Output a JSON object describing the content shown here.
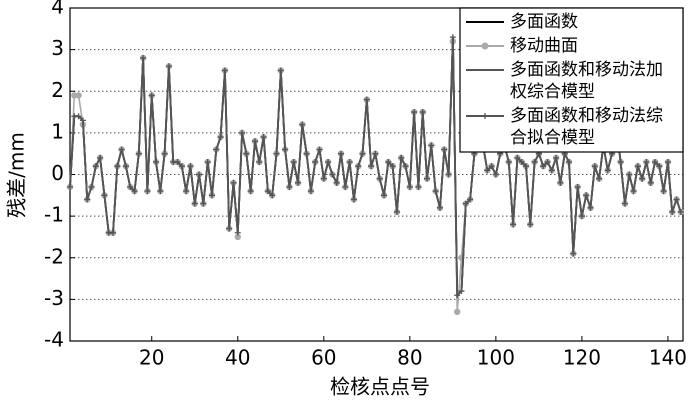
{
  "chart_data": {
    "type": "line",
    "xlabel": "检核点点号",
    "ylabel": "残差/mm",
    "x": [
      1,
      2,
      3,
      4,
      5,
      6,
      7,
      8,
      9,
      10,
      11,
      12,
      13,
      14,
      15,
      16,
      17,
      18,
      19,
      20,
      21,
      22,
      23,
      24,
      25,
      26,
      27,
      28,
      29,
      30,
      31,
      32,
      33,
      34,
      35,
      36,
      37,
      38,
      39,
      40,
      41,
      42,
      43,
      44,
      45,
      46,
      47,
      48,
      49,
      50,
      51,
      52,
      53,
      54,
      55,
      56,
      57,
      58,
      59,
      60,
      61,
      62,
      63,
      64,
      65,
      66,
      67,
      68,
      69,
      70,
      71,
      72,
      73,
      74,
      75,
      76,
      77,
      78,
      79,
      80,
      81,
      82,
      83,
      84,
      85,
      86,
      87,
      88,
      89,
      90,
      91,
      92,
      93,
      94,
      95,
      96,
      97,
      98,
      99,
      100,
      101,
      102,
      103,
      104,
      105,
      106,
      107,
      108,
      109,
      110,
      111,
      112,
      113,
      114,
      115,
      116,
      117,
      118,
      119,
      120,
      121,
      122,
      123,
      124,
      125,
      126,
      127,
      128,
      129,
      130,
      131,
      132,
      133,
      134,
      135,
      136,
      137,
      138,
      139,
      140,
      141,
      142,
      143
    ],
    "series": [
      {
        "name": "多面函数",
        "color": "#000000",
        "marker": "none",
        "values": [
          -0.3,
          1.4,
          1.4,
          1.3,
          -0.6,
          -0.3,
          0.2,
          0.4,
          -0.5,
          -1.4,
          -1.4,
          0.2,
          0.6,
          0.2,
          -0.3,
          -0.4,
          0.5,
          2.8,
          -0.4,
          1.9,
          0.3,
          -0.4,
          0.5,
          2.6,
          0.3,
          0.3,
          0.2,
          -0.4,
          0.2,
          -0.7,
          0.0,
          -0.7,
          0.3,
          -0.5,
          0.6,
          0.9,
          2.5,
          -1.3,
          -0.2,
          -1.4,
          1.0,
          0.5,
          -0.4,
          0.8,
          0.3,
          0.9,
          -0.4,
          -0.5,
          0.5,
          2.5,
          0.6,
          -0.3,
          0.3,
          -0.2,
          1.2,
          0.5,
          -0.4,
          0.3,
          0.6,
          -0.1,
          0.3,
          0.0,
          -0.2,
          0.5,
          -0.3,
          0.3,
          -0.6,
          0.2,
          0.5,
          1.8,
          0.2,
          0.5,
          -0.1,
          -0.5,
          0.3,
          0.2,
          -0.9,
          0.4,
          0.2,
          -0.3,
          1.5,
          -0.3,
          1.5,
          -0.1,
          0.7,
          -0.4,
          -0.8,
          0.6,
          0.0,
          3.3,
          -2.9,
          -2.8,
          -0.7,
          -0.6,
          0.5,
          2.0,
          0.7,
          0.1,
          0.2,
          0.0,
          0.5,
          0.7,
          0.3,
          -1.2,
          0.4,
          0.3,
          0.2,
          -1.2,
          0.3,
          0.5,
          0.2,
          0.3,
          0.1,
          0.4,
          -0.2,
          0.5,
          0.3,
          -1.9,
          -0.3,
          -1.0,
          -0.5,
          -0.8,
          0.2,
          -0.1,
          0.7,
          0.1,
          0.5,
          1.2,
          0.3,
          -0.7,
          0.0,
          -0.4,
          0.2,
          -0.1,
          0.3,
          -0.2,
          0.3,
          0.2,
          -0.4,
          0.3,
          -0.9,
          -0.6,
          -0.9
        ]
      },
      {
        "name": "移动曲面",
        "color": "#aaaaaa",
        "marker": "circle",
        "values": [
          -0.3,
          1.9,
          1.9,
          1.2,
          -0.6,
          -0.3,
          0.2,
          0.4,
          -0.5,
          -1.4,
          -1.4,
          0.2,
          0.6,
          0.2,
          -0.3,
          -0.4,
          0.5,
          2.8,
          -0.4,
          1.9,
          0.3,
          -0.4,
          0.5,
          2.6,
          0.3,
          0.3,
          0.2,
          -0.4,
          0.2,
          -0.7,
          0.0,
          -0.7,
          0.3,
          -0.5,
          0.6,
          0.9,
          2.5,
          -1.3,
          -0.2,
          -1.5,
          1.0,
          0.5,
          -0.4,
          0.8,
          0.3,
          0.9,
          -0.4,
          -0.5,
          0.5,
          2.5,
          0.6,
          -0.3,
          0.3,
          -0.2,
          1.2,
          0.5,
          -0.4,
          0.3,
          0.6,
          -0.1,
          0.3,
          0.0,
          -0.2,
          0.5,
          -0.3,
          0.3,
          -0.6,
          0.2,
          0.5,
          1.8,
          0.2,
          0.5,
          -0.1,
          -0.5,
          0.3,
          0.2,
          -0.9,
          0.4,
          0.2,
          -0.3,
          1.5,
          -0.3,
          1.5,
          -0.1,
          0.7,
          -0.4,
          -0.8,
          0.6,
          0.0,
          3.2,
          -3.3,
          -2.0,
          -0.7,
          -0.6,
          0.5,
          2.0,
          0.7,
          0.1,
          0.2,
          0.0,
          0.5,
          0.7,
          0.3,
          -1.2,
          0.4,
          0.3,
          0.2,
          -1.2,
          0.3,
          0.5,
          0.2,
          0.3,
          0.1,
          0.4,
          -0.2,
          0.5,
          0.3,
          -1.9,
          -0.3,
          -1.0,
          -0.5,
          -0.8,
          0.2,
          -0.1,
          0.7,
          0.1,
          0.5,
          1.2,
          0.3,
          -0.7,
          0.0,
          -0.4,
          0.2,
          -0.1,
          0.3,
          -0.2,
          0.3,
          0.2,
          -0.4,
          0.3,
          -0.9,
          -0.6,
          -0.9
        ]
      },
      {
        "name": "多面函数和移动法加权综合模型",
        "color": "#555555",
        "marker": "none",
        "values": [
          -0.3,
          1.4,
          1.4,
          1.3,
          -0.6,
          -0.3,
          0.2,
          0.4,
          -0.5,
          -1.4,
          -1.4,
          0.2,
          0.6,
          0.2,
          -0.3,
          -0.4,
          0.5,
          2.8,
          -0.4,
          1.9,
          0.3,
          -0.4,
          0.5,
          2.6,
          0.3,
          0.3,
          0.2,
          -0.4,
          0.2,
          -0.7,
          0.0,
          -0.7,
          0.3,
          -0.5,
          0.6,
          0.9,
          2.5,
          -1.3,
          -0.2,
          -1.4,
          1.0,
          0.5,
          -0.4,
          0.8,
          0.3,
          0.9,
          -0.4,
          -0.5,
          0.5,
          2.5,
          0.6,
          -0.3,
          0.3,
          -0.2,
          1.2,
          0.5,
          -0.4,
          0.3,
          0.6,
          -0.1,
          0.3,
          0.0,
          -0.2,
          0.5,
          -0.3,
          0.3,
          -0.6,
          0.2,
          0.5,
          1.8,
          0.2,
          0.5,
          -0.1,
          -0.5,
          0.3,
          0.2,
          -0.9,
          0.4,
          0.2,
          -0.3,
          1.5,
          -0.3,
          1.5,
          -0.1,
          0.7,
          -0.4,
          -0.8,
          0.6,
          0.0,
          3.3,
          -2.9,
          -2.8,
          -0.7,
          -0.6,
          0.5,
          2.0,
          0.7,
          0.1,
          0.2,
          0.0,
          0.5,
          0.7,
          0.3,
          -1.2,
          0.4,
          0.3,
          0.2,
          -1.2,
          0.3,
          0.5,
          0.2,
          0.3,
          0.1,
          0.4,
          -0.2,
          0.5,
          0.3,
          -1.9,
          -0.3,
          -1.0,
          -0.5,
          -0.8,
          0.2,
          -0.1,
          0.7,
          0.1,
          0.5,
          1.2,
          0.3,
          -0.7,
          0.0,
          -0.4,
          0.2,
          -0.1,
          0.3,
          -0.2,
          0.3,
          0.2,
          -0.4,
          0.3,
          -0.9,
          -0.6,
          -0.9
        ]
      },
      {
        "name": "多面函数和移动法综合拟合模型",
        "color": "#555555",
        "marker": "plus",
        "values": [
          -0.3,
          1.4,
          1.4,
          1.3,
          -0.6,
          -0.3,
          0.2,
          0.4,
          -0.5,
          -1.4,
          -1.4,
          0.2,
          0.6,
          0.2,
          -0.3,
          -0.4,
          0.5,
          2.8,
          -0.4,
          1.9,
          0.3,
          -0.4,
          0.5,
          2.6,
          0.3,
          0.3,
          0.2,
          -0.4,
          0.2,
          -0.7,
          0.0,
          -0.7,
          0.3,
          -0.5,
          0.6,
          0.9,
          2.5,
          -1.3,
          -0.2,
          -1.4,
          1.0,
          0.5,
          -0.4,
          0.8,
          0.3,
          0.9,
          -0.4,
          -0.5,
          0.5,
          2.5,
          0.6,
          -0.3,
          0.3,
          -0.2,
          1.2,
          0.5,
          -0.4,
          0.3,
          0.6,
          -0.1,
          0.3,
          0.0,
          -0.2,
          0.5,
          -0.3,
          0.3,
          -0.6,
          0.2,
          0.5,
          1.8,
          0.2,
          0.5,
          -0.1,
          -0.5,
          0.3,
          0.2,
          -0.9,
          0.4,
          0.2,
          -0.3,
          1.5,
          -0.3,
          1.5,
          -0.1,
          0.7,
          -0.4,
          -0.8,
          0.6,
          0.0,
          3.3,
          -2.9,
          -2.8,
          -0.7,
          -0.6,
          0.5,
          2.0,
          0.7,
          0.1,
          0.2,
          0.0,
          0.5,
          0.7,
          0.3,
          -1.2,
          0.4,
          0.3,
          0.2,
          -1.2,
          0.3,
          0.5,
          0.2,
          0.3,
          0.1,
          0.4,
          -0.2,
          0.5,
          0.3,
          -1.9,
          -0.3,
          -1.0,
          -0.5,
          -0.8,
          0.2,
          -0.1,
          0.7,
          0.1,
          0.5,
          1.2,
          0.3,
          -0.7,
          0.0,
          -0.4,
          0.2,
          -0.1,
          0.3,
          -0.2,
          0.3,
          0.2,
          -0.4,
          0.3,
          -0.9,
          -0.6,
          -0.9
        ]
      }
    ],
    "xlim": [
      1,
      143.5
    ],
    "xticks": [
      20,
      40,
      60,
      80,
      100,
      120,
      140
    ],
    "ylim": [
      -4,
      4
    ],
    "yticks": [
      -4,
      -3,
      -2,
      -1,
      0,
      1,
      2,
      3,
      4
    ],
    "grid": "y",
    "legend": "upper right"
  }
}
